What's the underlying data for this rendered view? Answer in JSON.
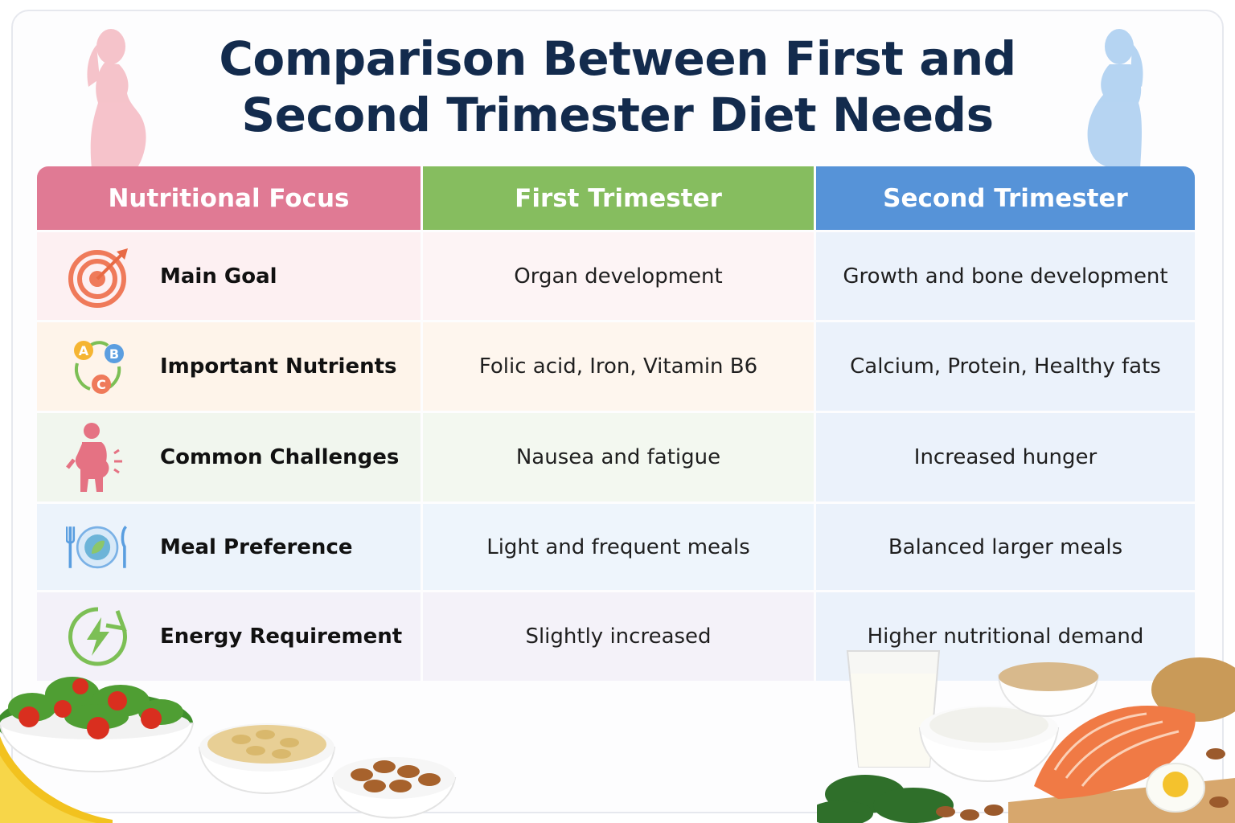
{
  "title": {
    "line1": "Comparison Between First and",
    "line2": "Second Trimester Diet Needs"
  },
  "headers": {
    "focus": "Nutritional Focus",
    "first": "First Trimester",
    "second": "Second Trimester"
  },
  "rows": [
    {
      "label": "Main Goal",
      "icon": "target-icon",
      "first": "Organ development",
      "second": "Growth and bone development"
    },
    {
      "label": "Important Nutrients",
      "icon": "vitamins-abc-icon",
      "first": "Folic acid, Iron, Vitamin B6",
      "second": "Calcium, Protein, Healthy fats",
      "icon_letters": [
        "A",
        "B",
        "C"
      ]
    },
    {
      "label": "Common Challenges",
      "icon": "nausea-person-icon",
      "first": "Nausea and fatigue",
      "second": "Increased hunger"
    },
    {
      "label": "Meal Preference",
      "icon": "plate-cutlery-icon",
      "first": "Light and frequent meals",
      "second": "Balanced larger meals"
    },
    {
      "label": "Energy Requirement",
      "icon": "lightning-energy-icon",
      "first": "Slightly increased",
      "second": "Higher nutritional demand"
    }
  ],
  "colors": {
    "title": "#132b4d",
    "header_focus": "#e07a94",
    "header_first": "#86bd5f",
    "header_second": "#5693d8"
  }
}
